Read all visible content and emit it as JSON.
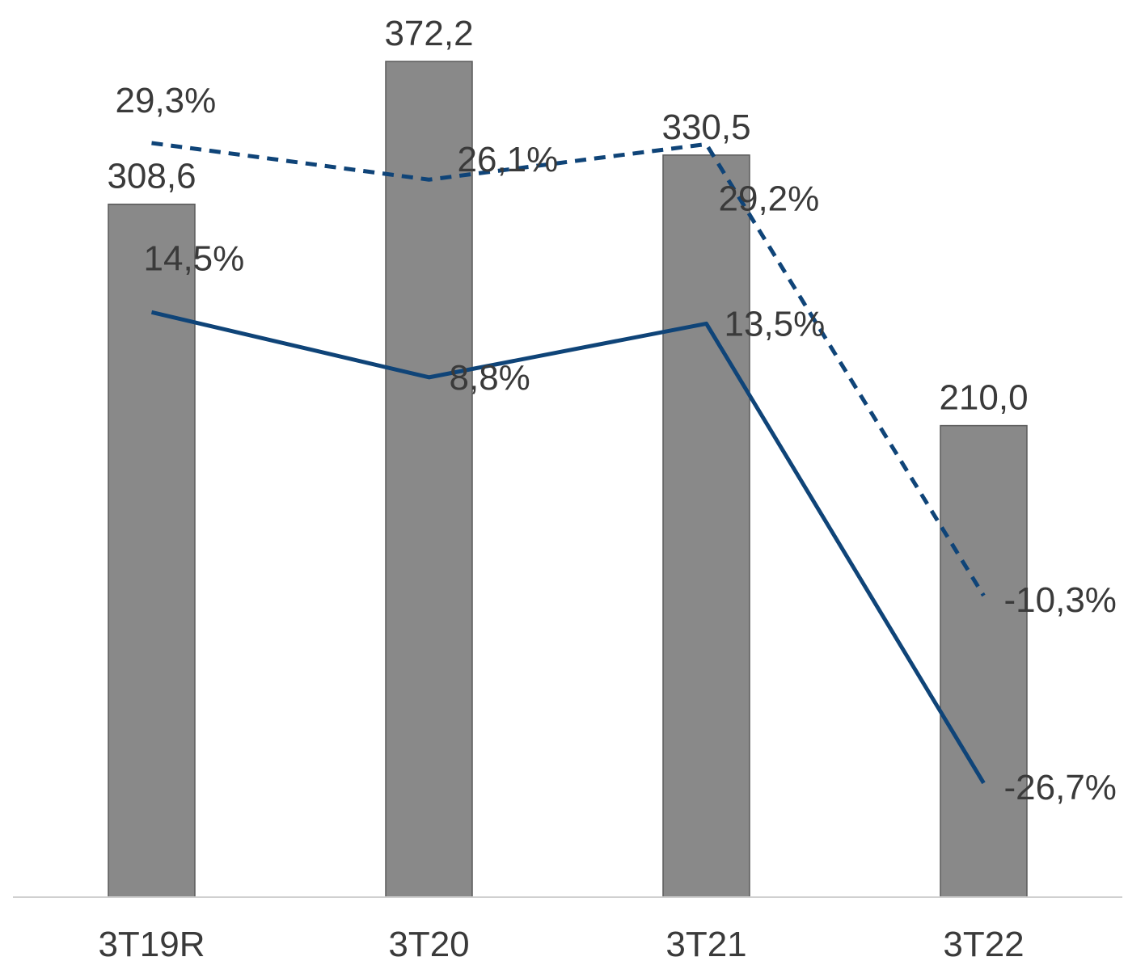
{
  "chart_data": {
    "type": "bar",
    "categories": [
      "3T19R",
      "3T20",
      "3T21",
      "3T22"
    ],
    "bars": {
      "values": [
        308.6,
        372.2,
        330.5,
        210.0
      ],
      "labels": [
        "308,6",
        "372,2",
        "330,5",
        "210,0"
      ],
      "color": "#898989",
      "edge_color": "#5a5a5a"
    },
    "lines": [
      {
        "style": "dashed",
        "values": [
          29.3,
          26.1,
          29.2,
          -10.3
        ],
        "labels": [
          "29,3%",
          "26,1%",
          "29,2%",
          "-10,3%"
        ],
        "color": "#0f4478"
      },
      {
        "style": "solid",
        "values": [
          14.5,
          8.8,
          13.5,
          -26.7
        ],
        "labels": [
          "14,5%",
          "8,8%",
          "13,5%",
          "-26,7%"
        ],
        "color": "#0f4478"
      }
    ],
    "bar_ylim": [
      0,
      400
    ],
    "line_ylim": [
      -30,
      35
    ],
    "axis_color": "#d0d0d0",
    "grid": false,
    "legend": "none"
  }
}
